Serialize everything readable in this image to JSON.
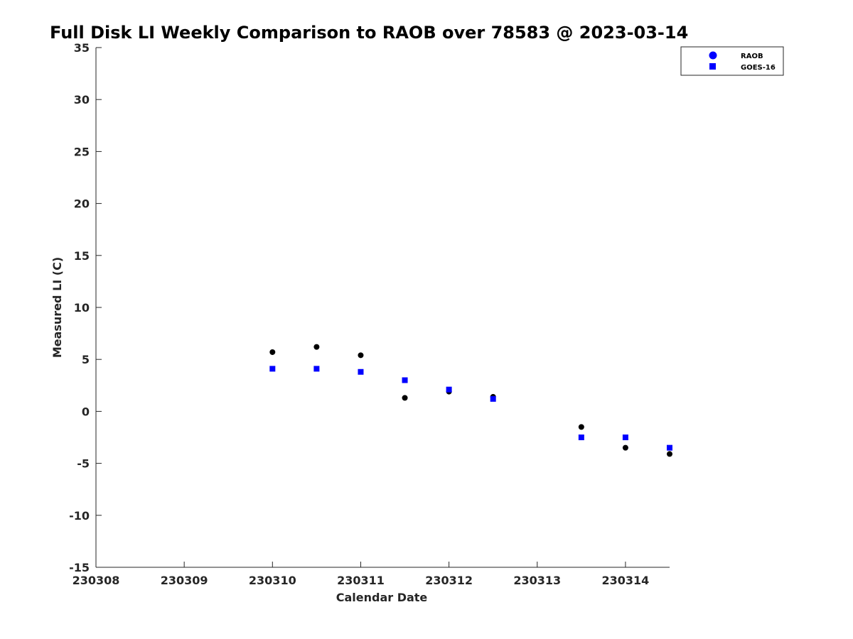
{
  "chart_data": {
    "type": "scatter",
    "title": "Full Disk LI Weekly Comparison to RAOB over 78583 @ 2023-03-14",
    "xlabel": "Calendar Date",
    "ylabel": "Measured LI (C)",
    "xlim": [
      "230308",
      "230314.5"
    ],
    "ylim": [
      -15,
      35
    ],
    "x_ticks": [
      "230308",
      "230309",
      "230310",
      "230311",
      "230312",
      "230313",
      "230314"
    ],
    "y_ticks": [
      "35",
      "30",
      "25",
      "20",
      "15",
      "10",
      "5",
      "0",
      "-5",
      "-10",
      "-15"
    ],
    "grid": false,
    "legend_position": "top-right",
    "series": [
      {
        "name": "RAOB",
        "marker": "circle",
        "color": "#000000",
        "points": [
          {
            "x": "2023-03-10 00Z",
            "y": 5.7
          },
          {
            "x": "2023-03-10 12Z",
            "y": 6.2
          },
          {
            "x": "2023-03-11 00Z",
            "y": 5.4
          },
          {
            "x": "2023-03-11 12Z",
            "y": 1.3
          },
          {
            "x": "2023-03-12 00Z",
            "y": 1.9
          },
          {
            "x": "2023-03-12 12Z",
            "y": 1.4
          },
          {
            "x": "2023-03-13 12Z",
            "y": -1.5
          },
          {
            "x": "2023-03-14 00Z",
            "y": -3.5
          },
          {
            "x": "2023-03-14 12Z",
            "y": -4.1
          }
        ]
      },
      {
        "name": "GOES-16",
        "marker": "square",
        "color": "#0000ff",
        "points": [
          {
            "x": "2023-03-10 00Z",
            "y": 4.1
          },
          {
            "x": "2023-03-10 12Z",
            "y": 4.1
          },
          {
            "x": "2023-03-11 00Z",
            "y": 3.8
          },
          {
            "x": "2023-03-11 12Z",
            "y": 3.0
          },
          {
            "x": "2023-03-12 00Z",
            "y": 2.1
          },
          {
            "x": "2023-03-12 12Z",
            "y": 1.2
          },
          {
            "x": "2023-03-13 12Z",
            "y": -2.5
          },
          {
            "x": "2023-03-14 00Z",
            "y": -2.5
          },
          {
            "x": "2023-03-14 12Z",
            "y": -3.5
          }
        ]
      }
    ]
  }
}
